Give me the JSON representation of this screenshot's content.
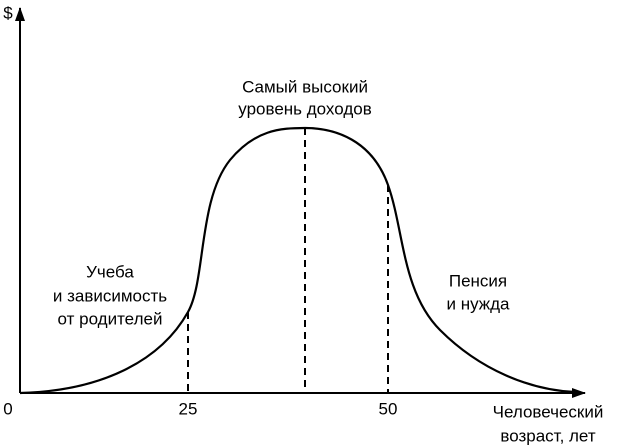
{
  "axes": {
    "y_label": "$",
    "x_label": [
      "Человеческий",
      "возраст, лет"
    ],
    "x_ticks": [
      "0",
      "25",
      "50"
    ]
  },
  "annotations": [
    {
      "lines": [
        "Самый высокий",
        "уровень доходов"
      ]
    },
    {
      "lines": [
        "Учеба",
        "и зависимость",
        "от родителей"
      ]
    },
    {
      "lines": [
        "Пенсия",
        "и нужда"
      ]
    }
  ]
}
